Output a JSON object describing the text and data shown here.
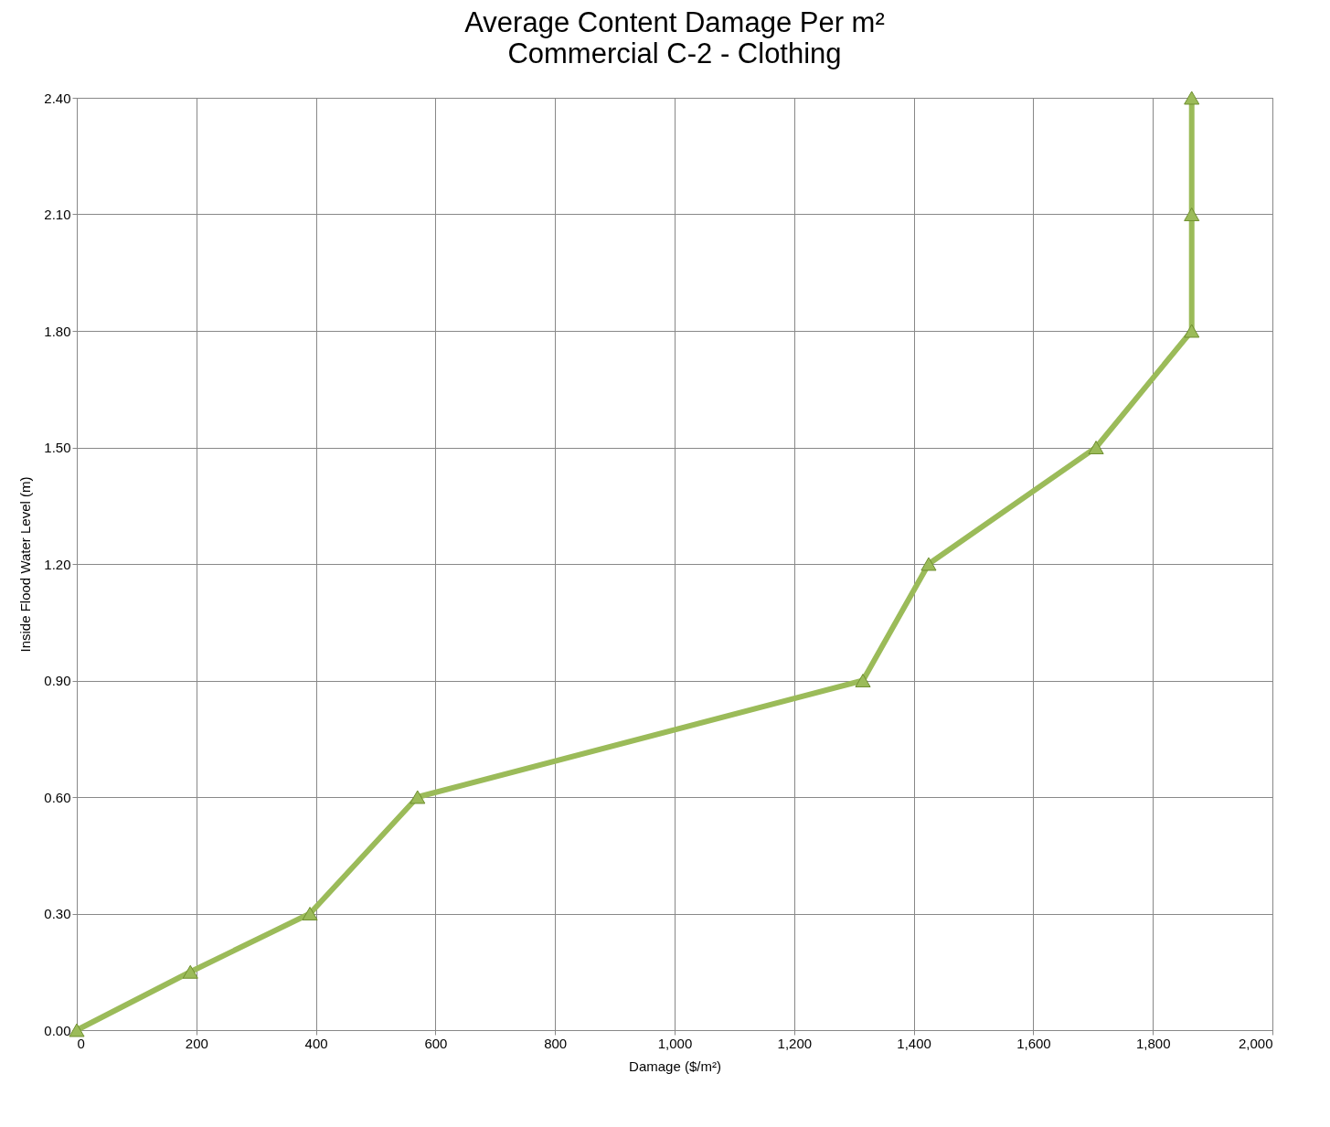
{
  "chart_data": {
    "type": "line",
    "title": "Average Content Damage Per m²",
    "subtitle": "Commercial C-2 - Clothing",
    "xlabel": "Damage    ($/m²)",
    "ylabel": "Inside Flood Water Level (m)",
    "x": [
      0,
      190,
      390,
      570,
      1315,
      1425,
      1705,
      1865,
      1865,
      1865
    ],
    "series": [
      {
        "color": "#9bbb59",
        "values": [
          0,
          0.15,
          0.3,
          0.6,
          0.9,
          1.2,
          1.5,
          1.8,
          2.1,
          2.4
        ]
      }
    ],
    "xlim": [
      0,
      2000
    ],
    "xticks": [
      0,
      200,
      400,
      600,
      800,
      {
        "value": 1000,
        "label": "1,000"
      },
      {
        "value": 1200,
        "label": "1,200"
      },
      {
        "value": 1400,
        "label": "1,400"
      },
      {
        "value": 1600,
        "label": "1,600"
      },
      {
        "value": 1800,
        "label": "1,800"
      },
      {
        "value": 2000,
        "label": "2,000"
      }
    ],
    "ylim": [
      0,
      2.4
    ],
    "yticks": [
      {
        "value": 0,
        "label": "0.00"
      },
      {
        "value": 0.3,
        "label": "0.30"
      },
      {
        "value": 0.6,
        "label": "0.60"
      },
      {
        "value": 0.9,
        "label": "0.90"
      },
      {
        "value": 1.2,
        "label": "1.20"
      },
      {
        "value": 1.5,
        "label": "1.50"
      },
      {
        "value": 1.8,
        "label": "1.80"
      },
      {
        "value": 2.1,
        "label": "2.10"
      },
      {
        "value": 2.4,
        "label": "2.40"
      }
    ],
    "grid": true,
    "marker": "triangle",
    "line_style": "solid"
  }
}
